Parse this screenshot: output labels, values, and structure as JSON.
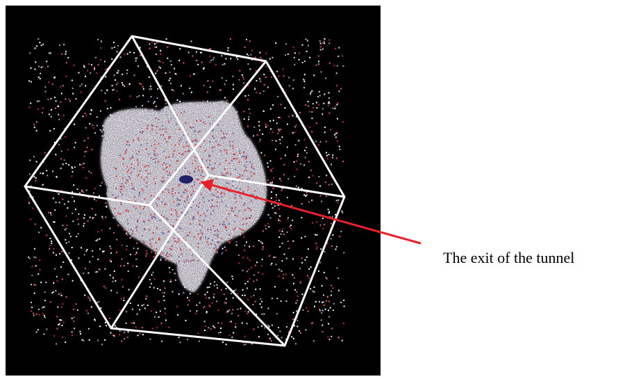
{
  "annotation": {
    "label": "The exit of the tunnel"
  }
}
